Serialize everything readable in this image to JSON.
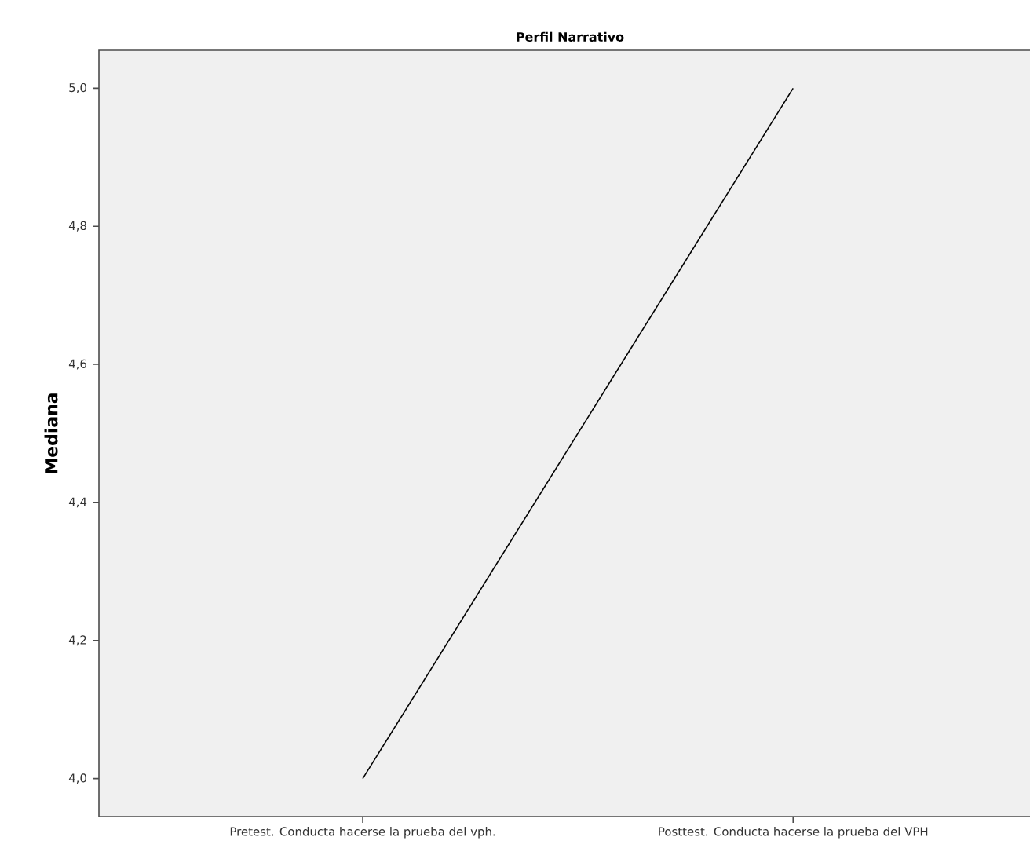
{
  "chart_data": {
    "type": "line",
    "title": "Perfil Narrativo",
    "ylabel": "Mediana",
    "categories": [
      "Pretest. Conducta hacerse la prueba del vph.",
      "Posttest. Conducta hacerse la prueba del VPH"
    ],
    "series": [
      {
        "color": "#000000",
        "values": [
          4.0,
          5.0
        ]
      }
    ],
    "ylim": [
      3.945,
      5.055
    ],
    "yticks": [
      {
        "value": 4.0,
        "label": "4,0"
      },
      {
        "value": 4.2,
        "label": "4,2"
      },
      {
        "value": 4.4,
        "label": "4,4"
      },
      {
        "value": 4.6,
        "label": "4,6"
      },
      {
        "value": 4.8,
        "label": "4,8"
      },
      {
        "value": 5.0,
        "label": "5,0"
      }
    ],
    "marker": "none",
    "line_style": "solid"
  }
}
